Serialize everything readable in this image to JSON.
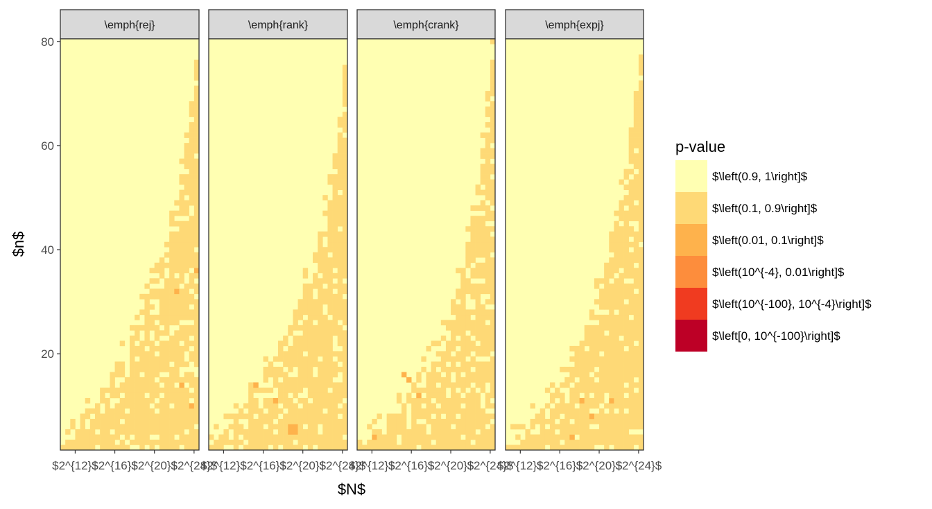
{
  "chart_data": {
    "type": "heatmap",
    "facets": [
      "\\emph{rej}",
      "\\emph{rank}",
      "\\emph{crank}",
      "\\emph{expj}"
    ],
    "xlabel": "$N$",
    "ylabel": "$n$",
    "x_tick_labels": [
      "$2^{12}$",
      "$2^{16}$",
      "$2^{20}$",
      "$2^{24}$"
    ],
    "y_tick_labels": [
      "20",
      "40",
      "60",
      "80"
    ],
    "y_ticks": [
      20,
      40,
      60,
      80
    ],
    "ylim": [
      1.5,
      80.5
    ],
    "x_range_log2": [
      10.5,
      24.5
    ],
    "cell_grid": {
      "x_cells": 28,
      "y_cells": 79,
      "y_start": 2
    },
    "legend": {
      "title": "p-value",
      "placement": "right",
      "entries": [
        {
          "label": "$\\left(0.9, 1\\right]$",
          "color": "#FFFFB2"
        },
        {
          "label": "$\\left(0.1, 0.9\\right]$",
          "color": "#FED976"
        },
        {
          "label": "$\\left(0.01, 0.1\\right]$",
          "color": "#FEB24C"
        },
        {
          "label": "$\\left(10^{-4}, 0.01\\right]$",
          "color": "#FD8D3C"
        },
        {
          "label": "$\\left(10^{-100}, 10^{-4}\\right]$",
          "color": "#F03B20"
        },
        {
          "label": "$\\left[0, 10^{-100}\\right]$",
          "color": "#BD0026"
        }
      ]
    },
    "boundary_n_by_column": {
      "\\emph{rej}": [
        2,
        3,
        4,
        5,
        7,
        8,
        9,
        10,
        12,
        13,
        15,
        17,
        19,
        21,
        23,
        25,
        28,
        31,
        33,
        36,
        39,
        42,
        46,
        50,
        55,
        60,
        67,
        76
      ],
      "\\emph{rank}": [
        2,
        3,
        4,
        5,
        6,
        8,
        9,
        10,
        12,
        13,
        14,
        16,
        17,
        19,
        21,
        23,
        25,
        27,
        30,
        33,
        36,
        39,
        43,
        47,
        52,
        58,
        66,
        76
      ],
      "\\emph{crank}": [
        2,
        2,
        3,
        4,
        5,
        6,
        7,
        8,
        9,
        10,
        11,
        13,
        14,
        16,
        18,
        20,
        22,
        24,
        27,
        30,
        33,
        37,
        41,
        46,
        52,
        59,
        67,
        77
      ],
      "\\emph{expj}": [
        2,
        3,
        3,
        4,
        5,
        7,
        8,
        9,
        10,
        12,
        13,
        15,
        17,
        19,
        21,
        23,
        25,
        28,
        31,
        34,
        37,
        41,
        45,
        50,
        55,
        62,
        70,
        78
      ]
    },
    "orange_cells": [
      {
        "facet": 0,
        "x": 23,
        "n": 32
      },
      {
        "facet": 0,
        "x": 27,
        "n": 36
      },
      {
        "facet": 0,
        "x": 24,
        "n": 14
      },
      {
        "facet": 0,
        "x": 26,
        "n": 10
      },
      {
        "facet": 1,
        "x": 16,
        "n": 5
      },
      {
        "facet": 1,
        "x": 16,
        "n": 6
      },
      {
        "facet": 1,
        "x": 17,
        "n": 5
      },
      {
        "facet": 1,
        "x": 17,
        "n": 6
      },
      {
        "facet": 1,
        "x": 9,
        "n": 14
      },
      {
        "facet": 1,
        "x": 13,
        "n": 11
      },
      {
        "facet": 2,
        "x": 9,
        "n": 16
      },
      {
        "facet": 2,
        "x": 10,
        "n": 15
      },
      {
        "facet": 2,
        "x": 12,
        "n": 12
      },
      {
        "facet": 2,
        "x": 3,
        "n": 4
      },
      {
        "facet": 3,
        "x": 15,
        "n": 11
      },
      {
        "facet": 3,
        "x": 21,
        "n": 11
      },
      {
        "facet": 3,
        "x": 13,
        "n": 4
      },
      {
        "facet": 3,
        "x": 17,
        "n": 8
      }
    ]
  }
}
